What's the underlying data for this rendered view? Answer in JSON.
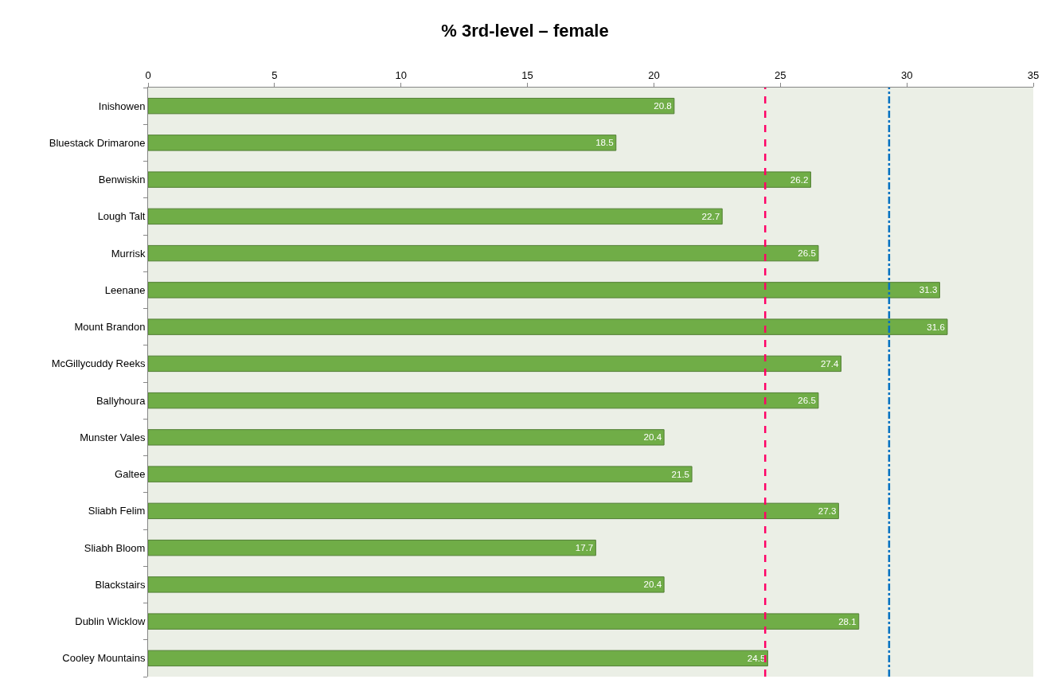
{
  "chart_data": {
    "type": "bar",
    "orientation": "horizontal",
    "title": "% 3rd-level – female",
    "categories": [
      "Inishowen",
      "Bluestack Drimarone",
      "Benwiskin",
      "Lough Talt",
      "Murrisk",
      "Leenane",
      "Mount Brandon",
      "McGillycuddy Reeks",
      "Ballyhoura",
      "Munster Vales",
      "Galtee",
      "Sliabh Felim",
      "Sliabh Bloom",
      "Blackstairs",
      "Dublin Wicklow",
      "Cooley Mountains"
    ],
    "values": [
      20.8,
      18.5,
      26.2,
      22.7,
      26.5,
      31.3,
      31.6,
      27.4,
      26.5,
      20.4,
      21.5,
      27.3,
      17.7,
      20.4,
      28.1,
      24.5
    ],
    "color": "#70ad47",
    "data_labels": true,
    "xlim": [
      0,
      35
    ],
    "xticks": [
      0,
      5,
      10,
      15,
      20,
      25,
      30,
      35
    ],
    "grid": false,
    "legend": false,
    "ref_lines": [
      {
        "axis": "x",
        "value": 24.4,
        "color": "#ff0066",
        "line_style": "dashed"
      },
      {
        "axis": "x",
        "value": 29.3,
        "color": "#0070c0",
        "line_style": "dashdot"
      }
    ]
  }
}
